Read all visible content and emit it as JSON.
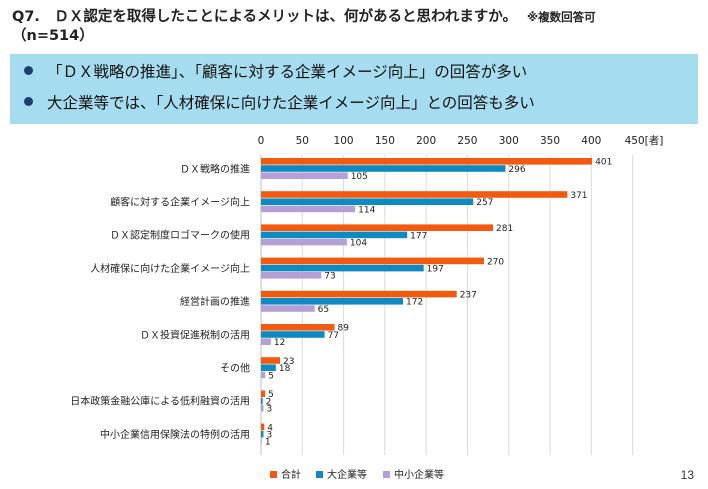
{
  "question": {
    "text": "Q7.　ＤＸ認定を取得したことによるメリットは、何があると思われますか。",
    "note": "※複数回答可",
    "n": "（n=514）"
  },
  "summary": {
    "line1": "「ＤＸ戦略の推進」、「顧客に対する企業イメージ向上」の回答が多い",
    "line2": "大企業等では、「人材確保に向けた企業イメージ向上」との回答も多い",
    "box_color": "#a6dcef"
  },
  "page_number": "13",
  "chart_data": {
    "type": "bar",
    "orientation": "horizontal",
    "categories": [
      "ＤＸ戦略の推進",
      "顧客に対する企業イメージ向上",
      "ＤＸ認定制度ロゴマークの使用",
      "人材確保に向けた企業イメージ向上",
      "経営計画の推進",
      "ＤＸ投資促進税制の活用",
      "その他",
      "日本政策金融公庫による低利融資の活用",
      "中小企業信用保険法の特例の活用"
    ],
    "series": [
      {
        "name": "合計",
        "color": "#f15a0f",
        "values": [
          401,
          371,
          281,
          270,
          237,
          89,
          23,
          5,
          4
        ]
      },
      {
        "name": "大企業等",
        "color": "#0e8ac2",
        "values": [
          296,
          257,
          177,
          197,
          172,
          77,
          18,
          2,
          3
        ]
      },
      {
        "name": "中小企業等",
        "color": "#b49fd6",
        "values": [
          105,
          114,
          104,
          73,
          65,
          12,
          5,
          3,
          1
        ]
      }
    ],
    "xlim": [
      0,
      450
    ],
    "x_ticks": [
      "0",
      "50",
      "100",
      "150",
      "200",
      "250",
      "300",
      "350",
      "400",
      "450[者]"
    ],
    "gridlines": true,
    "legend_position": "bottom"
  }
}
